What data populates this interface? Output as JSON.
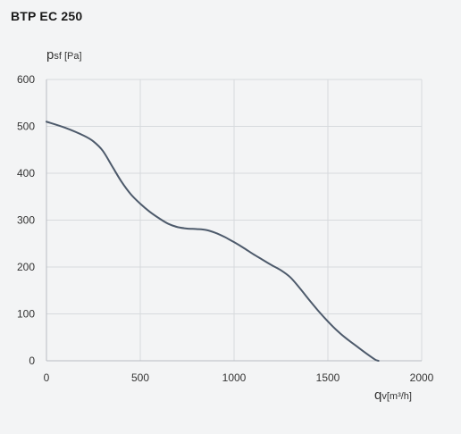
{
  "chart_data": {
    "type": "line",
    "title": "BTP EC 250",
    "ylabel": {
      "main": "p",
      "sub": "sf [Pa]"
    },
    "xlabel": {
      "main": "q",
      "sub": "v[m³/h]"
    },
    "xlim": [
      0,
      2000
    ],
    "ylim": [
      0,
      600
    ],
    "xticks": [
      0,
      500,
      1000,
      1500,
      2000
    ],
    "yticks": [
      0,
      100,
      200,
      300,
      400,
      500,
      600
    ],
    "grid": true,
    "series": [
      {
        "color": "#4d5a6b",
        "points": [
          [
            0,
            510
          ],
          [
            100,
            497
          ],
          [
            200,
            480
          ],
          [
            250,
            468
          ],
          [
            300,
            448
          ],
          [
            350,
            415
          ],
          [
            400,
            382
          ],
          [
            450,
            355
          ],
          [
            500,
            335
          ],
          [
            550,
            318
          ],
          [
            600,
            304
          ],
          [
            650,
            292
          ],
          [
            700,
            285
          ],
          [
            750,
            282
          ],
          [
            800,
            281
          ],
          [
            850,
            279
          ],
          [
            900,
            273
          ],
          [
            950,
            264
          ],
          [
            1000,
            253
          ],
          [
            1050,
            241
          ],
          [
            1100,
            228
          ],
          [
            1150,
            216
          ],
          [
            1200,
            204
          ],
          [
            1250,
            193
          ],
          [
            1300,
            178
          ],
          [
            1350,
            155
          ],
          [
            1400,
            130
          ],
          [
            1450,
            106
          ],
          [
            1500,
            84
          ],
          [
            1550,
            64
          ],
          [
            1600,
            47
          ],
          [
            1650,
            32
          ],
          [
            1700,
            17
          ],
          [
            1750,
            3
          ],
          [
            1770,
            0
          ]
        ]
      }
    ]
  }
}
